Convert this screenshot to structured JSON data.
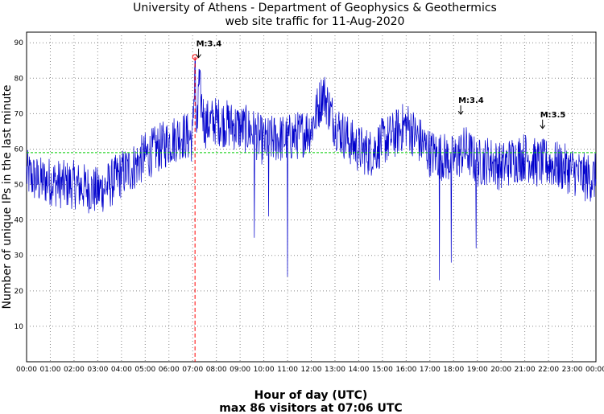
{
  "chart_data": {
    "type": "line",
    "title": "University of Athens - Department of Geophysics & Geothermics",
    "subtitle": "web site traffic for 11-Aug-2020",
    "xlabel": "Hour of day (UTC)",
    "ylabel": "Number of unique IPs in the last minute",
    "footer": "max 86 visitors at 07:06 UTC",
    "xlim": [
      0,
      24
    ],
    "ylim": [
      0,
      93
    ],
    "grid": true,
    "x_tick_labels": [
      "00:00",
      "01:00",
      "02:00",
      "03:00",
      "04:00",
      "05:00",
      "06:00",
      "07:00",
      "08:00",
      "09:00",
      "10:00",
      "11:00",
      "12:00",
      "13:00",
      "14:00",
      "15:00",
      "16:00",
      "17:00",
      "18:00",
      "19:00",
      "20:00",
      "21:00",
      "22:00",
      "23:00",
      "00:00"
    ],
    "y_ticks": [
      10,
      20,
      30,
      40,
      50,
      60,
      70,
      80,
      90
    ],
    "series": [
      {
        "color": "#0000cc",
        "x_hours": [
          0,
          0.5,
          1,
          1.5,
          2,
          2.5,
          3,
          3.5,
          4,
          4.5,
          5,
          5.5,
          6,
          6.5,
          7,
          7.1,
          7.5,
          8,
          8.5,
          9,
          9.5,
          10,
          10.5,
          11,
          11.5,
          12,
          12.5,
          13,
          13.5,
          14,
          14.5,
          15,
          15.5,
          16,
          16.5,
          17,
          17.5,
          18,
          18.5,
          19,
          19.5,
          20,
          20.5,
          21,
          21.5,
          22,
          22.5,
          23,
          23.5,
          24
        ],
        "values": [
          53,
          51,
          51,
          50,
          50,
          49,
          48,
          50,
          53,
          55,
          58,
          60,
          62,
          64,
          63,
          86,
          67,
          68,
          67,
          66,
          65,
          62,
          63,
          63,
          64,
          66,
          76,
          67,
          63,
          60,
          59,
          62,
          64,
          67,
          63,
          59,
          58,
          57,
          60,
          56,
          57,
          55,
          57,
          58,
          56,
          56,
          55,
          54,
          52,
          52
        ]
      }
    ],
    "reference_line": {
      "value": 59,
      "color": "#00cc00",
      "style": "dashed"
    },
    "max_marker": {
      "x_hours": 7.1,
      "value": 86,
      "color": "#ff0000"
    },
    "dips": [
      {
        "x_hours": 9.6,
        "value": 35
      },
      {
        "x_hours": 10.2,
        "value": 41
      },
      {
        "x_hours": 11.0,
        "value": 24
      },
      {
        "x_hours": 17.4,
        "value": 23
      },
      {
        "x_hours": 17.9,
        "value": 28
      },
      {
        "x_hours": 18.95,
        "value": 32
      }
    ],
    "annotations": [
      {
        "text": "M:3.4",
        "x_hours": 7.25,
        "value": 89
      },
      {
        "text": "M:3.4",
        "x_hours": 18.3,
        "value": 73
      },
      {
        "text": "M:3.5",
        "x_hours": 21.75,
        "value": 69
      }
    ]
  }
}
